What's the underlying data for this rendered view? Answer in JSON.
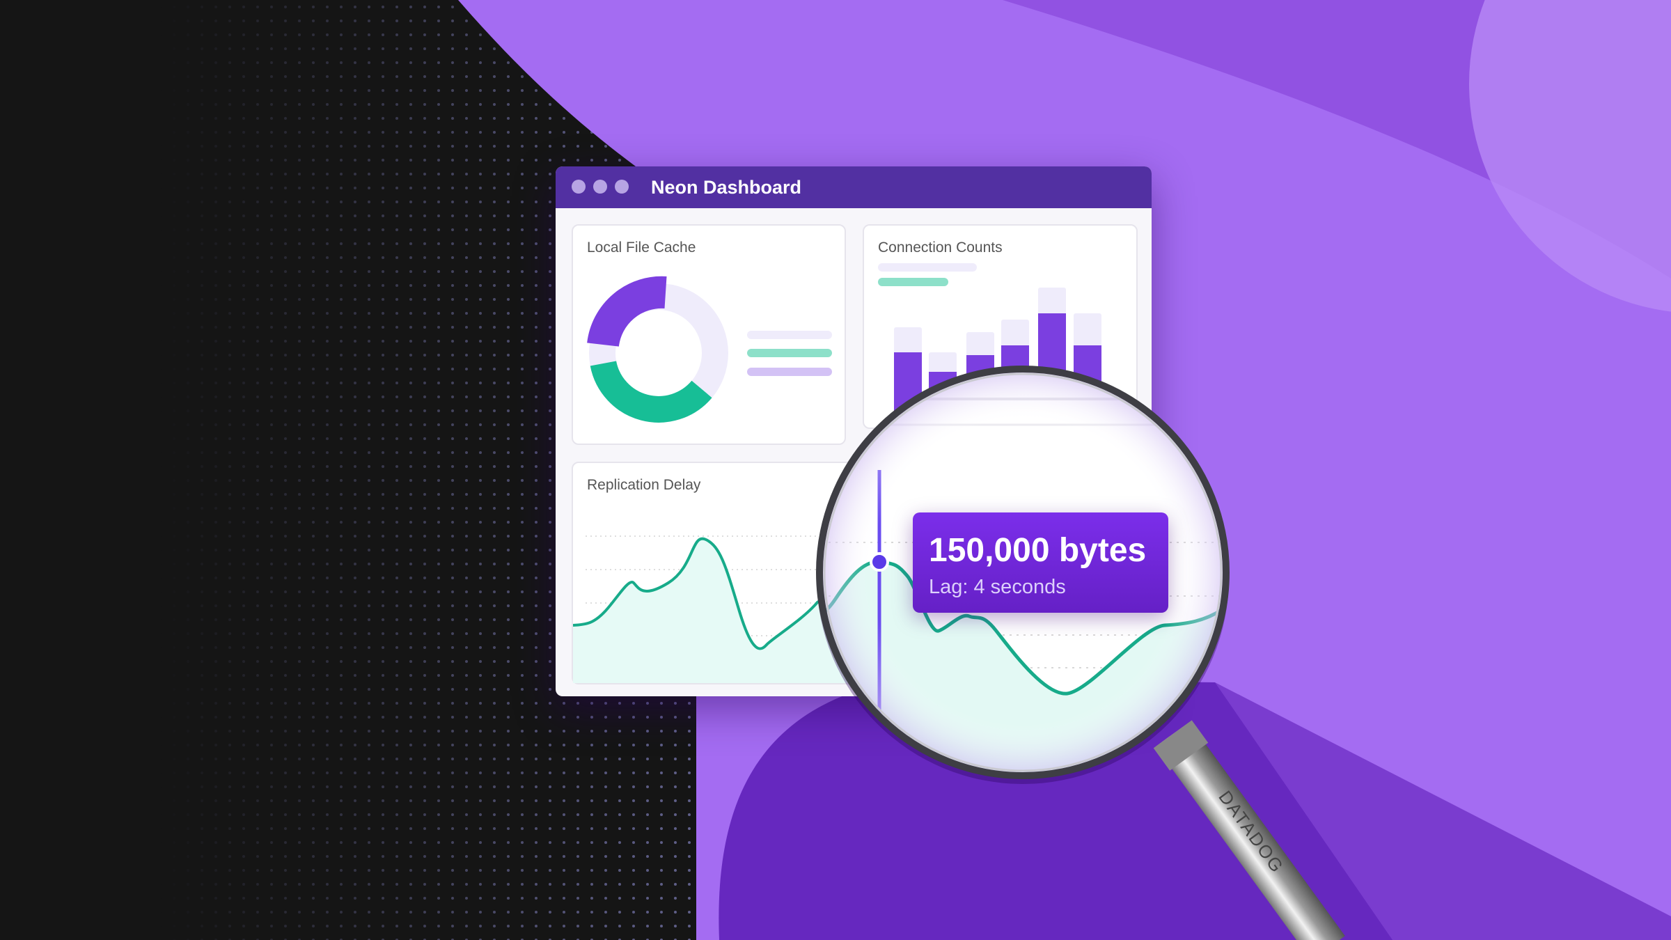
{
  "window": {
    "title": "Neon Dashboard",
    "controls": [
      "close",
      "minimize",
      "maximize"
    ]
  },
  "cards": {
    "local_file_cache": {
      "title": "Local File Cache"
    },
    "connection_counts": {
      "title": "Connection Counts"
    },
    "replication_delay": {
      "title": "Replication Delay"
    }
  },
  "tooltip": {
    "value": "150,000 bytes",
    "detail": "Lag: 4 seconds"
  },
  "magnifier": {
    "brand": "DATADOG",
    "icon": "magnifying-glass-icon"
  },
  "colors": {
    "accent_purple": "#7b3fe0",
    "accent_green": "#17be96",
    "titlebar": "#5230a2",
    "tooltip": "#6e24d8"
  }
}
